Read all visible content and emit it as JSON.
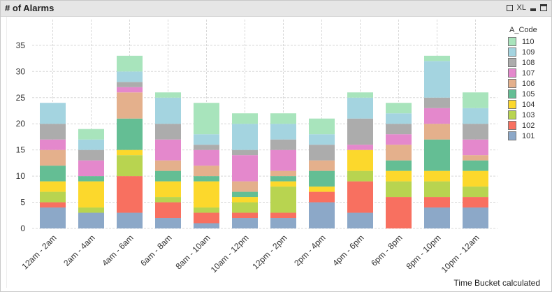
{
  "window": {
    "title": "# of Alarms",
    "controls": [
      {
        "name": "print-icon",
        "label": ""
      },
      {
        "name": "excel-export",
        "label": "XL"
      },
      {
        "name": "minimize-icon",
        "label": ""
      },
      {
        "name": "maximize-icon",
        "label": ""
      }
    ]
  },
  "chart_data": {
    "type": "bar",
    "stacked": true,
    "title": "# of Alarms",
    "xlabel": "Time Bucket calculated",
    "ylabel": "",
    "ylim": [
      0,
      37
    ],
    "yticks": [
      0,
      5,
      10,
      15,
      20,
      25,
      30,
      35
    ],
    "grid": true,
    "legend": {
      "title": "A_Code",
      "position": "right"
    },
    "categories": [
      "12am - 2am",
      "2am - 4am",
      "4am - 6am",
      "6am - 8am",
      "8am - 10am",
      "10am - 12pm",
      "12pm - 2pm",
      "2pm - 4pm",
      "4pm - 6pm",
      "6pm - 8pm",
      "8pm - 10pm",
      "10pm - 12am"
    ],
    "series": [
      {
        "name": "101",
        "color": "#8ca8c8",
        "values": [
          4,
          3,
          3,
          2,
          1,
          2,
          2,
          5,
          3,
          0,
          4,
          4
        ]
      },
      {
        "name": "102",
        "color": "#f87060",
        "values": [
          1,
          0,
          7,
          3,
          2,
          1,
          1,
          2,
          6,
          6,
          2,
          2
        ]
      },
      {
        "name": "103",
        "color": "#b8d450",
        "values": [
          2,
          1,
          4,
          1,
          1,
          2,
          5,
          0,
          2,
          3,
          3,
          2
        ]
      },
      {
        "name": "104",
        "color": "#fcd82c",
        "values": [
          2,
          5,
          1,
          3,
          5,
          1,
          1,
          1,
          4,
          2,
          2,
          3
        ]
      },
      {
        "name": "105",
        "color": "#64be94",
        "values": [
          3,
          1,
          6,
          2,
          1,
          1,
          1,
          3,
          0,
          2,
          6,
          2
        ]
      },
      {
        "name": "106",
        "color": "#e4b08c",
        "values": [
          3,
          0,
          5,
          2,
          2,
          2,
          1,
          2,
          0,
          3,
          3,
          1
        ]
      },
      {
        "name": "107",
        "color": "#e488cc",
        "values": [
          2,
          3,
          1,
          4,
          3,
          5,
          4,
          0,
          1,
          2,
          3,
          3
        ]
      },
      {
        "name": "108",
        "color": "#acacac",
        "values": [
          3,
          2,
          1,
          3,
          1,
          1,
          2,
          3,
          5,
          2,
          2,
          3
        ]
      },
      {
        "name": "109",
        "color": "#a4d4e0",
        "values": [
          4,
          2,
          2,
          5,
          2,
          5,
          3,
          2,
          4,
          2,
          7,
          3
        ]
      },
      {
        "name": "110",
        "color": "#a8e4bc",
        "values": [
          0,
          2,
          3,
          1,
          6,
          2,
          2,
          3,
          1,
          2,
          1,
          3
        ]
      }
    ]
  }
}
